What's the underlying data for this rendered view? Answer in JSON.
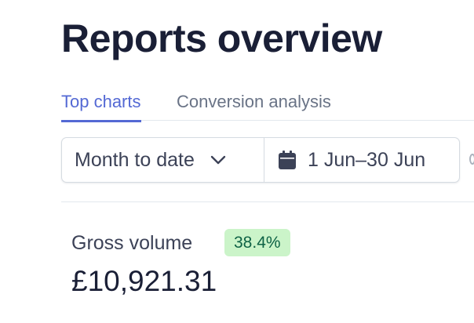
{
  "header": {
    "title": "Reports overview"
  },
  "tabs": [
    {
      "label": "Top charts",
      "active": true
    },
    {
      "label": "Conversion analysis",
      "active": false
    }
  ],
  "controls": {
    "range_select": {
      "value": "Month to date",
      "icon": "chevron-down-icon"
    },
    "date_picker": {
      "value": "1 Jun–30 Jun",
      "icon": "calendar-icon"
    }
  },
  "metric": {
    "label": "Gross volume",
    "change_badge": "38.4%",
    "value": "£10,921.31"
  },
  "colors": {
    "accent": "#5469d4",
    "badge_bg": "#cbf4c9",
    "badge_text": "#0e6245",
    "title": "#1a1f36",
    "muted": "#697386"
  }
}
